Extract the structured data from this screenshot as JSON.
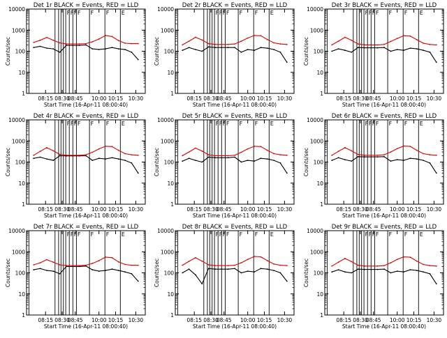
{
  "colors": {
    "events": "#000000",
    "lld": "#dd0000",
    "background": "#ffffff"
  },
  "shared": {
    "xlabel": "Start Time (16-Apr-11 08:00:40)",
    "ylabel": "Counts/sec",
    "x_ticks": [
      "08:15",
      "08:30",
      "08:45",
      "10:00",
      "10:15",
      "10:30"
    ],
    "y_ticks": [
      "1",
      "10",
      "100",
      "1000",
      "10000"
    ],
    "y_scale": "log"
  },
  "chart_data": [
    {
      "type": "line",
      "title": "Det 1r BLACK = Events, RED = LLD",
      "x": [
        "08:15",
        "08:20",
        "08:25",
        "08:30",
        "08:35",
        "08:40",
        "08:45",
        "08:50",
        "08:55",
        "09:00",
        "09:05",
        "09:10",
        "09:15",
        "09:20",
        "09:25",
        "09:30",
        "09:35"
      ],
      "ylim": [
        1,
        10000
      ],
      "series": [
        {
          "name": "Events",
          "color": "#000000",
          "values": [
            150,
            170,
            140,
            130,
            90,
            190,
            190,
            190,
            200,
            130,
            120,
            130,
            150,
            130,
            120,
            90,
            40
          ]
        },
        {
          "name": "LLD",
          "color": "#dd0000",
          "values": [
            260,
            330,
            450,
            330,
            250,
            220,
            220,
            220,
            230,
            280,
            380,
            560,
            500,
            320,
            240,
            230,
            230
          ]
        }
      ],
      "flags": [
        "F",
        "F",
        "F",
        "F",
        "F",
        "F",
        "E"
      ]
    },
    {
      "type": "line",
      "title": "Det 2r BLACK = Events, RED = LLD",
      "x": [
        "08:15",
        "08:20",
        "08:25",
        "08:30",
        "08:35",
        "08:40",
        "08:45",
        "08:50",
        "08:55",
        "09:00",
        "09:05",
        "09:10",
        "09:15",
        "09:20",
        "09:25",
        "09:30",
        "09:35"
      ],
      "ylim": [
        1,
        10000
      ],
      "series": [
        {
          "name": "Events",
          "color": "#000000",
          "values": [
            110,
            150,
            120,
            100,
            160,
            150,
            150,
            150,
            150,
            90,
            120,
            110,
            150,
            140,
            120,
            90,
            30
          ]
        },
        {
          "name": "LLD",
          "color": "#dd0000",
          "values": [
            200,
            300,
            460,
            340,
            230,
            210,
            210,
            210,
            220,
            300,
            420,
            560,
            540,
            360,
            250,
            220,
            210
          ]
        }
      ],
      "flags": [
        "F",
        "F",
        "F",
        "F",
        "F",
        "F",
        "E"
      ]
    },
    {
      "type": "line",
      "title": "Det 3r BLACK = Events, RED = LLD",
      "x": [
        "08:15",
        "08:20",
        "08:25",
        "08:30",
        "08:35",
        "08:40",
        "08:45",
        "08:50",
        "08:55",
        "09:00",
        "09:05",
        "09:10",
        "09:15",
        "09:20",
        "09:25",
        "09:30",
        "09:35"
      ],
      "ylim": [
        1,
        10000
      ],
      "series": [
        {
          "name": "Events",
          "color": "#000000",
          "values": [
            100,
            130,
            110,
            90,
            150,
            145,
            145,
            145,
            150,
            100,
            120,
            110,
            140,
            130,
            110,
            90,
            30
          ]
        },
        {
          "name": "LLD",
          "color": "#dd0000",
          "values": [
            200,
            300,
            460,
            330,
            220,
            200,
            200,
            200,
            210,
            290,
            400,
            540,
            520,
            350,
            240,
            210,
            200
          ]
        }
      ],
      "flags": [
        "F",
        "F",
        "F",
        "F",
        "F",
        "F",
        "E"
      ]
    },
    {
      "type": "line",
      "title": "Det 4r BLACK = Events, RED = LLD",
      "x": [
        "08:15",
        "08:20",
        "08:25",
        "08:30",
        "08:35",
        "08:40",
        "08:45",
        "08:50",
        "08:55",
        "09:00",
        "09:05",
        "09:10",
        "09:15",
        "09:20",
        "09:25",
        "09:30",
        "09:35"
      ],
      "ylim": [
        1,
        10000
      ],
      "series": [
        {
          "name": "Events",
          "color": "#000000",
          "values": [
            150,
            170,
            140,
            120,
            200,
            195,
            195,
            195,
            200,
            120,
            150,
            140,
            160,
            140,
            120,
            90,
            30
          ]
        },
        {
          "name": "LLD",
          "color": "#dd0000",
          "values": [
            210,
            320,
            480,
            340,
            230,
            210,
            210,
            210,
            220,
            290,
            420,
            560,
            540,
            360,
            250,
            220,
            210
          ]
        }
      ],
      "flags": [
        "F",
        "F",
        "F",
        "F",
        "F",
        "F",
        "E"
      ]
    },
    {
      "type": "line",
      "title": "Det 5r BLACK = Events, RED = LLD",
      "x": [
        "08:15",
        "08:20",
        "08:25",
        "08:30",
        "08:35",
        "08:40",
        "08:45",
        "08:50",
        "08:55",
        "09:00",
        "09:05",
        "09:10",
        "09:15",
        "09:20",
        "09:25",
        "09:30",
        "09:35"
      ],
      "ylim": [
        1,
        10000
      ],
      "series": [
        {
          "name": "Events",
          "color": "#000000",
          "values": [
            110,
            150,
            120,
            100,
            170,
            160,
            160,
            160,
            170,
            100,
            120,
            110,
            150,
            140,
            120,
            90,
            30
          ]
        },
        {
          "name": "LLD",
          "color": "#dd0000",
          "values": [
            200,
            300,
            460,
            330,
            220,
            200,
            200,
            200,
            210,
            290,
            420,
            560,
            540,
            360,
            250,
            220,
            210
          ]
        }
      ],
      "flags": [
        "F",
        "F",
        "F",
        "F",
        "F",
        "F",
        "E"
      ]
    },
    {
      "type": "line",
      "title": "Det 6r BLACK = Events, RED = LLD",
      "x": [
        "08:15",
        "08:20",
        "08:25",
        "08:30",
        "08:35",
        "08:40",
        "08:45",
        "08:50",
        "08:55",
        "09:00",
        "09:05",
        "09:10",
        "09:15",
        "09:20",
        "09:25",
        "09:30",
        "09:35"
      ],
      "ylim": [
        1,
        10000
      ],
      "series": [
        {
          "name": "Events",
          "color": "#000000",
          "values": [
            120,
            160,
            130,
            110,
            180,
            175,
            175,
            175,
            180,
            110,
            130,
            120,
            150,
            140,
            120,
            90,
            30
          ]
        },
        {
          "name": "LLD",
          "color": "#dd0000",
          "values": [
            210,
            320,
            480,
            340,
            230,
            210,
            210,
            210,
            220,
            300,
            430,
            570,
            550,
            360,
            250,
            220,
            210
          ]
        }
      ],
      "flags": [
        "F",
        "F",
        "F",
        "F",
        "F",
        "F",
        "E"
      ]
    },
    {
      "type": "line",
      "title": "Det 7r BLACK = Events, RED = LLD",
      "x": [
        "08:15",
        "08:20",
        "08:25",
        "08:30",
        "08:35",
        "08:40",
        "08:45",
        "08:50",
        "08:55",
        "09:00",
        "09:05",
        "09:10",
        "09:15",
        "09:20",
        "09:25",
        "09:30",
        "09:35"
      ],
      "ylim": [
        1,
        10000
      ],
      "series": [
        {
          "name": "Events",
          "color": "#000000",
          "values": [
            140,
            160,
            130,
            120,
            90,
            200,
            200,
            200,
            210,
            140,
            120,
            130,
            150,
            130,
            110,
            90,
            40
          ]
        },
        {
          "name": "LLD",
          "color": "#dd0000",
          "values": [
            240,
            300,
            420,
            320,
            240,
            220,
            220,
            220,
            230,
            280,
            380,
            560,
            520,
            330,
            250,
            230,
            230
          ]
        }
      ],
      "flags": [
        "F",
        "F",
        "F",
        "F",
        "F",
        "F",
        "E"
      ]
    },
    {
      "type": "line",
      "title": "Det 8r BLACK = Events, RED = LLD",
      "x": [
        "08:15",
        "08:20",
        "08:25",
        "08:30",
        "08:35",
        "08:40",
        "08:45",
        "08:50",
        "08:55",
        "09:00",
        "09:05",
        "09:10",
        "09:15",
        "09:20",
        "09:25",
        "09:30",
        "09:35"
      ],
      "ylim": [
        1,
        10000
      ],
      "series": [
        {
          "name": "Events",
          "color": "#000000",
          "values": [
            100,
            150,
            80,
            30,
            160,
            150,
            150,
            150,
            160,
            100,
            120,
            110,
            160,
            150,
            130,
            100,
            40
          ]
        },
        {
          "name": "LLD",
          "color": "#dd0000",
          "values": [
            230,
            350,
            520,
            360,
            240,
            220,
            220,
            220,
            230,
            300,
            430,
            600,
            570,
            380,
            260,
            230,
            220
          ]
        }
      ],
      "flags": [
        "F",
        "F",
        "F",
        "F",
        "F",
        "F",
        "E"
      ]
    },
    {
      "type": "line",
      "title": "Det 9r BLACK = Events, RED = LLD",
      "x": [
        "08:15",
        "08:20",
        "08:25",
        "08:30",
        "08:35",
        "08:40",
        "08:45",
        "08:50",
        "08:55",
        "09:00",
        "09:05",
        "09:10",
        "09:15",
        "09:20",
        "09:25",
        "09:30",
        "09:35"
      ],
      "ylim": [
        1,
        10000
      ],
      "series": [
        {
          "name": "Events",
          "color": "#000000",
          "values": [
            110,
            140,
            110,
            100,
            150,
            145,
            145,
            145,
            150,
            100,
            120,
            110,
            140,
            130,
            110,
            90,
            30
          ]
        },
        {
          "name": "LLD",
          "color": "#dd0000",
          "values": [
            210,
            320,
            480,
            340,
            230,
            210,
            210,
            210,
            220,
            300,
            430,
            570,
            550,
            360,
            250,
            220,
            210
          ]
        }
      ],
      "flags": [
        "F",
        "F",
        "F",
        "F",
        "F",
        "F",
        "E"
      ]
    }
  ]
}
